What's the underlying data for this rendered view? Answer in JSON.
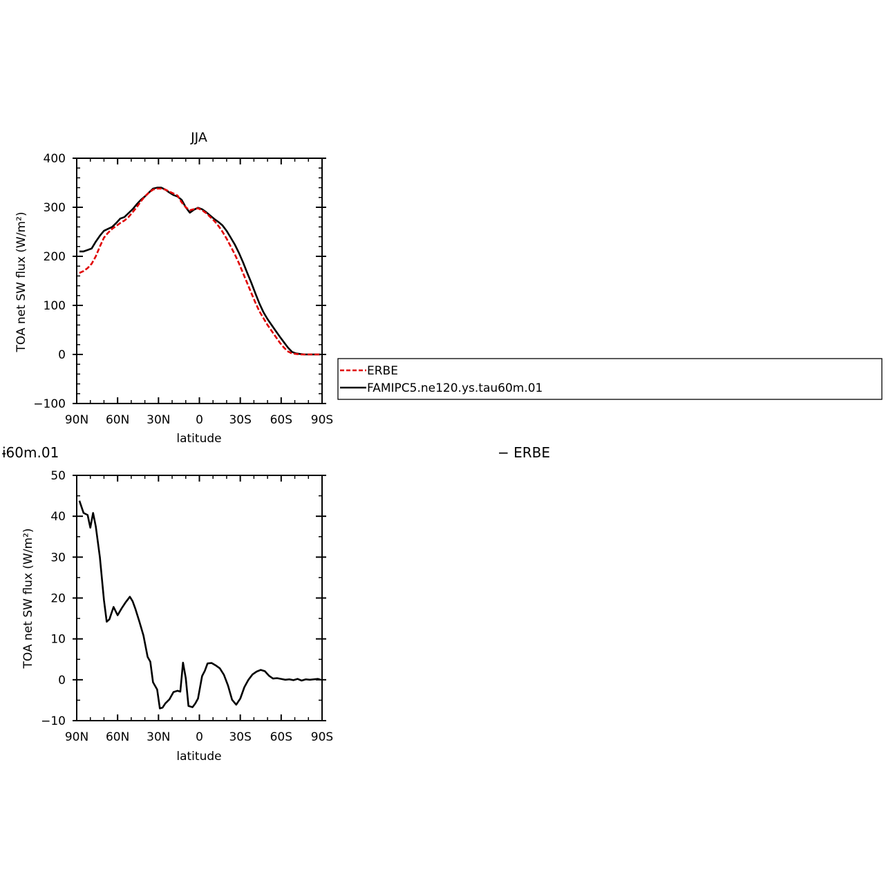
{
  "colors": {
    "model": "#000000",
    "obs": "#e00000",
    "background": "#ffffff"
  },
  "chart_data": [
    {
      "type": "line",
      "title": "JJA",
      "xlabel": "latitude",
      "ylabel": "TOA net SW flux (W/m²)",
      "xlim": [
        90,
        -90
      ],
      "ylim": [
        -100,
        400
      ],
      "xticks": [
        90,
        60,
        30,
        0,
        -30,
        -60,
        -90
      ],
      "xtick_labels": [
        "90N",
        "60N",
        "30N",
        "0",
        "30S",
        "60S",
        "90S"
      ],
      "yticks": [
        -100,
        0,
        100,
        200,
        300,
        400
      ],
      "ytick_labels": [
        "−100",
        "0",
        "100",
        "200",
        "300",
        "400"
      ],
      "legend": {
        "placement": "right",
        "entries": [
          "ERBE",
          "FAMIPC5.ne120.ys.tau60m.01"
        ]
      },
      "series": [
        {
          "name": "ERBE",
          "style": "dashed",
          "color": "#e00000",
          "x": [
            88,
            85,
            82,
            79,
            76,
            73,
            70,
            67,
            64,
            61,
            58,
            55,
            52,
            49,
            46,
            43,
            40,
            37,
            34,
            31,
            28,
            25,
            22,
            19,
            16,
            13,
            10,
            7,
            4,
            1,
            -2,
            -5,
            -8,
            -11,
            -14,
            -17,
            -20,
            -23,
            -26,
            -29,
            -32,
            -35,
            -38,
            -41,
            -44,
            -47,
            -50,
            -53,
            -56,
            -59,
            -62,
            -65,
            -68,
            -71,
            -74,
            -77,
            -80,
            -83,
            -86,
            -89
          ],
          "values": [
            166,
            170,
            176,
            185,
            200,
            220,
            238,
            248,
            256,
            262,
            268,
            273,
            280,
            290,
            300,
            312,
            322,
            330,
            336,
            338,
            338,
            336,
            332,
            328,
            324,
            310,
            300,
            294,
            296,
            298,
            294,
            288,
            280,
            272,
            262,
            250,
            236,
            220,
            204,
            186,
            166,
            146,
            126,
            106,
            88,
            74,
            60,
            48,
            36,
            24,
            14,
            6,
            2,
            1,
            0,
            0,
            0,
            0,
            0,
            0
          ]
        },
        {
          "name": "FAMIPC5.ne120.ys.tau60m.01",
          "style": "solid",
          "color": "#000000",
          "x": [
            88,
            85,
            82,
            79,
            76,
            73,
            70,
            67,
            64,
            61,
            58,
            55,
            52,
            49,
            46,
            43,
            40,
            37,
            34,
            31,
            28,
            25,
            22,
            19,
            16,
            13,
            10,
            7,
            4,
            1,
            -2,
            -5,
            -8,
            -11,
            -14,
            -17,
            -20,
            -23,
            -26,
            -29,
            -32,
            -35,
            -38,
            -41,
            -44,
            -47,
            -50,
            -53,
            -56,
            -59,
            -62,
            -65,
            -68,
            -71,
            -74,
            -77,
            -80,
            -83,
            -86,
            -89
          ],
          "values": [
            210,
            210,
            213,
            216,
            230,
            242,
            252,
            256,
            260,
            268,
            277,
            280,
            288,
            296,
            306,
            315,
            322,
            330,
            338,
            340,
            340,
            336,
            330,
            325,
            322,
            315,
            300,
            289,
            295,
            299,
            296,
            290,
            283,
            276,
            270,
            263,
            252,
            238,
            224,
            207,
            188,
            167,
            147,
            125,
            104,
            86,
            72,
            60,
            48,
            36,
            25,
            14,
            5,
            2,
            1,
            0,
            0,
            0,
            0,
            0
          ]
        }
      ]
    },
    {
      "type": "line",
      "title": "ı​60m.01",
      "title_visible": "ɨ60m.01",
      "title_right": "− ERBE",
      "xlabel": "latitude",
      "ylabel": "TOA net SW flux (W/m²)",
      "xlim": [
        90,
        -90
      ],
      "ylim": [
        -10,
        50
      ],
      "xticks": [
        90,
        60,
        30,
        0,
        -30,
        -60,
        -90
      ],
      "xtick_labels": [
        "90N",
        "60N",
        "30N",
        "0",
        "30S",
        "60S",
        "90S"
      ],
      "yticks": [
        -10,
        0,
        10,
        20,
        30,
        40,
        50
      ],
      "ytick_labels": [
        "−10",
        "0",
        "10",
        "20",
        "30",
        "40",
        "50"
      ],
      "series": [
        {
          "style": "solid",
          "color": "#000000",
          "x": [
            88,
            85,
            82,
            80,
            78,
            76,
            73,
            70,
            68,
            66,
            63,
            60,
            57,
            54,
            51,
            49,
            47,
            44,
            41,
            38,
            36,
            34,
            31,
            29,
            27,
            25,
            22,
            19,
            16,
            14,
            12,
            10,
            8,
            5,
            3,
            1,
            -2,
            -4,
            -6,
            -9,
            -12,
            -15,
            -18,
            -21,
            -24,
            -27,
            -30,
            -33,
            -36,
            -39,
            -42,
            -45,
            -48,
            -51,
            -54,
            -57,
            -60,
            -63,
            -66,
            -69,
            -72,
            -75,
            -78,
            -81,
            -84,
            -87,
            -89
          ],
          "values": [
            43.8,
            40.8,
            40.3,
            37.2,
            40.8,
            37.5,
            30,
            19.5,
            14.2,
            14.8,
            17.8,
            15.8,
            17.5,
            19,
            20.3,
            19.2,
            17.4,
            14.2,
            10.8,
            5.6,
            4.4,
            -0.6,
            -2.4,
            -7,
            -6.8,
            -5.8,
            -4.8,
            -3,
            -2.7,
            -2.9,
            4.2,
            0.4,
            -6.4,
            -6.7,
            -5.8,
            -4.6,
            0.9,
            2.2,
            4,
            4.1,
            3.5,
            2.8,
            1.2,
            -1.4,
            -4.9,
            -6.1,
            -4.6,
            -1.8,
            0,
            1.3,
            2,
            2.4,
            2.1,
            1,
            0.3,
            0.4,
            0.2,
            0,
            0.1,
            -0.1,
            0.2,
            -0.2,
            0.1,
            0,
            0.1,
            0.2,
            0
          ]
        }
      ]
    }
  ]
}
